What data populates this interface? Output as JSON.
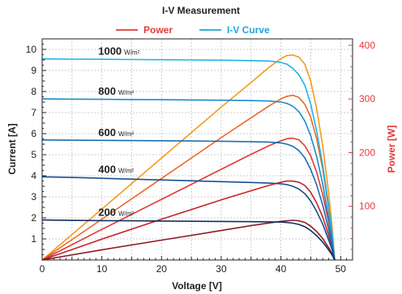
{
  "chart_data": {
    "type": "line",
    "title": "I-V Measurement",
    "xlabel": "Voltage [V]",
    "ylabel_left": "Current [A]",
    "ylabel_right": "Power [W]",
    "legend": [
      {
        "label": "Power",
        "color": "#e23a36"
      },
      {
        "label": "I-V Curve",
        "color": "#1ba6de"
      }
    ],
    "legend_position": "top-center",
    "x_ticks": [
      0,
      10,
      20,
      30,
      40,
      50
    ],
    "y_left_ticks": [
      1,
      2,
      3,
      4,
      5,
      6,
      7,
      8,
      9,
      10
    ],
    "y_right_ticks": [
      100,
      200,
      300,
      400
    ],
    "xlim": [
      0,
      52
    ],
    "ylim_left": [
      0,
      10.5
    ],
    "ylim_right": [
      0,
      412
    ],
    "grid": true,
    "irradiance_unit": "W/m²",
    "series": [
      {
        "irradiance": "1000",
        "iv_color": "#1fb4e6",
        "power_color": "#f39a1e",
        "iv": [
          [
            0,
            9.55
          ],
          [
            5,
            9.54
          ],
          [
            10,
            9.53
          ],
          [
            15,
            9.52
          ],
          [
            20,
            9.51
          ],
          [
            25,
            9.5
          ],
          [
            30,
            9.49
          ],
          [
            35,
            9.47
          ],
          [
            38,
            9.45
          ],
          [
            40,
            9.38
          ],
          [
            41,
            9.3
          ],
          [
            42,
            9.1
          ],
          [
            43,
            8.8
          ],
          [
            44,
            8.3
          ],
          [
            45,
            7.4
          ],
          [
            46,
            6.1
          ],
          [
            47,
            4.5
          ],
          [
            48,
            2.6
          ],
          [
            48.6,
            1.2
          ],
          [
            49,
            0
          ]
        ],
        "power": [
          [
            0,
            0
          ],
          [
            10,
            95
          ],
          [
            20,
            190
          ],
          [
            30,
            285
          ],
          [
            35,
            331
          ],
          [
            38,
            359
          ],
          [
            40,
            375
          ],
          [
            41,
            381
          ],
          [
            42,
            382
          ],
          [
            43,
            378
          ],
          [
            44,
            365
          ],
          [
            45,
            333
          ],
          [
            46,
            281
          ],
          [
            47,
            212
          ],
          [
            48,
            125
          ],
          [
            48.6,
            58
          ],
          [
            49,
            0
          ]
        ]
      },
      {
        "irradiance": "800",
        "iv_color": "#1a8ccc",
        "power_color": "#e86a2a",
        "iv": [
          [
            0,
            7.65
          ],
          [
            5,
            7.64
          ],
          [
            10,
            7.63
          ],
          [
            15,
            7.62
          ],
          [
            20,
            7.61
          ],
          [
            25,
            7.6
          ],
          [
            30,
            7.59
          ],
          [
            35,
            7.57
          ],
          [
            38,
            7.55
          ],
          [
            40,
            7.5
          ],
          [
            41,
            7.44
          ],
          [
            42,
            7.3
          ],
          [
            43,
            7.05
          ],
          [
            44,
            6.6
          ],
          [
            45,
            5.9
          ],
          [
            46,
            4.9
          ],
          [
            47,
            3.6
          ],
          [
            48,
            2.0
          ],
          [
            48.6,
            0.9
          ],
          [
            49,
            0
          ]
        ],
        "power": [
          [
            0,
            0
          ],
          [
            10,
            76
          ],
          [
            20,
            152
          ],
          [
            30,
            228
          ],
          [
            35,
            265
          ],
          [
            38,
            287
          ],
          [
            40,
            300
          ],
          [
            41,
            305
          ],
          [
            42,
            307
          ],
          [
            43,
            303
          ],
          [
            44,
            290
          ],
          [
            45,
            266
          ],
          [
            46,
            225
          ],
          [
            47,
            169
          ],
          [
            48,
            96
          ],
          [
            48.6,
            44
          ],
          [
            49,
            0
          ]
        ]
      },
      {
        "irradiance": "600",
        "iv_color": "#1a6db0",
        "power_color": "#e23a36",
        "iv": [
          [
            0,
            5.7
          ],
          [
            5,
            5.69
          ],
          [
            10,
            5.68
          ],
          [
            15,
            5.67
          ],
          [
            20,
            5.66
          ],
          [
            25,
            5.65
          ],
          [
            30,
            5.64
          ],
          [
            35,
            5.62
          ],
          [
            38,
            5.6
          ],
          [
            40,
            5.56
          ],
          [
            41,
            5.5
          ],
          [
            42,
            5.4
          ],
          [
            43,
            5.2
          ],
          [
            44,
            4.85
          ],
          [
            45,
            4.3
          ],
          [
            46,
            3.55
          ],
          [
            47,
            2.6
          ],
          [
            48,
            1.45
          ],
          [
            48.6,
            0.65
          ],
          [
            49,
            0
          ]
        ],
        "power": [
          [
            0,
            0
          ],
          [
            10,
            57
          ],
          [
            20,
            113
          ],
          [
            30,
            169
          ],
          [
            35,
            197
          ],
          [
            38,
            213
          ],
          [
            40,
            222
          ],
          [
            41,
            226
          ],
          [
            42,
            227
          ],
          [
            43,
            224
          ],
          [
            44,
            213
          ],
          [
            45,
            194
          ],
          [
            46,
            163
          ],
          [
            47,
            122
          ],
          [
            48,
            70
          ],
          [
            48.6,
            32
          ],
          [
            49,
            0
          ]
        ]
      },
      {
        "irradiance": "400",
        "iv_color": "#174f92",
        "power_color": "#c8222a",
        "iv": [
          [
            0,
            3.95
          ],
          [
            5,
            3.92
          ],
          [
            10,
            3.88
          ],
          [
            15,
            3.84
          ],
          [
            20,
            3.8
          ],
          [
            25,
            3.76
          ],
          [
            30,
            3.72
          ],
          [
            35,
            3.68
          ],
          [
            38,
            3.65
          ],
          [
            40,
            3.62
          ],
          [
            41,
            3.58
          ],
          [
            42,
            3.5
          ],
          [
            43,
            3.37
          ],
          [
            44,
            3.15
          ],
          [
            45,
            2.8
          ],
          [
            46,
            2.3
          ],
          [
            47,
            1.7
          ],
          [
            48,
            0.95
          ],
          [
            48.6,
            0.45
          ],
          [
            49,
            0
          ]
        ],
        "power": [
          [
            0,
            0
          ],
          [
            10,
            39
          ],
          [
            20,
            76
          ],
          [
            30,
            112
          ],
          [
            35,
            129
          ],
          [
            38,
            139
          ],
          [
            40,
            145
          ],
          [
            41,
            147
          ],
          [
            42,
            147
          ],
          [
            43,
            145
          ],
          [
            44,
            139
          ],
          [
            45,
            126
          ],
          [
            46,
            106
          ],
          [
            47,
            80
          ],
          [
            48,
            46
          ],
          [
            48.6,
            22
          ],
          [
            49,
            0
          ]
        ]
      },
      {
        "irradiance": "200",
        "iv_color": "#102f63",
        "power_color": "#8e1a22",
        "iv": [
          [
            0,
            1.9
          ],
          [
            5,
            1.88
          ],
          [
            10,
            1.87
          ],
          [
            15,
            1.86
          ],
          [
            20,
            1.85
          ],
          [
            25,
            1.84
          ],
          [
            30,
            1.83
          ],
          [
            35,
            1.82
          ],
          [
            38,
            1.81
          ],
          [
            40,
            1.8
          ],
          [
            41,
            1.78
          ],
          [
            42,
            1.75
          ],
          [
            43,
            1.69
          ],
          [
            44,
            1.58
          ],
          [
            45,
            1.4
          ],
          [
            46,
            1.15
          ],
          [
            47,
            0.85
          ],
          [
            48,
            0.48
          ],
          [
            48.6,
            0.22
          ],
          [
            49,
            0
          ]
        ],
        "power": [
          [
            0,
            0
          ],
          [
            10,
            19
          ],
          [
            20,
            37
          ],
          [
            30,
            55
          ],
          [
            35,
            64
          ],
          [
            38,
            69
          ],
          [
            40,
            72
          ],
          [
            41,
            73
          ],
          [
            42,
            74
          ],
          [
            43,
            73
          ],
          [
            44,
            70
          ],
          [
            45,
            63
          ],
          [
            46,
            53
          ],
          [
            47,
            40
          ],
          [
            48,
            23
          ],
          [
            48.6,
            11
          ],
          [
            49,
            0
          ]
        ]
      }
    ]
  }
}
